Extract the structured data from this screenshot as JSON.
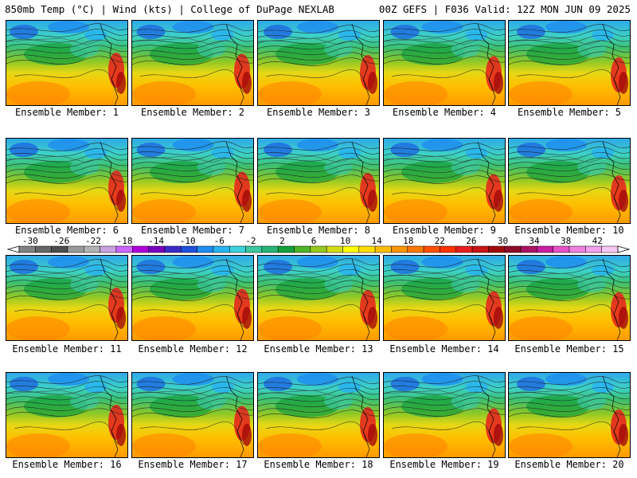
{
  "header": {
    "left": "850mb Temp (°C) | Wind (kts) | College of DuPage NEXLAB",
    "right": "00Z GEFS | F036 Valid: 12Z MON JUN 09 2025"
  },
  "colorbar": {
    "labels": [
      "-30",
      "-26",
      "-22",
      "-18",
      "-14",
      "-10",
      "-6",
      "-2",
      "2",
      "6",
      "10",
      "14",
      "18",
      "22",
      "26",
      "30",
      "34",
      "38",
      "42"
    ],
    "colors": [
      "#808080",
      "#666666",
      "#4d4d4d",
      "#999999",
      "#b3b3b3",
      "#c8a2e0",
      "#cc66ff",
      "#b000d8",
      "#7a00c0",
      "#3c2ac8",
      "#1e50dc",
      "#1e8cf0",
      "#28b4f0",
      "#3cd2dc",
      "#3cc8a0",
      "#28b478",
      "#14a03c",
      "#50b428",
      "#96c81e",
      "#d2dc14",
      "#ffff00",
      "#ffdc00",
      "#ffbe00",
      "#ff9600",
      "#ff7800",
      "#ff5000",
      "#ff3200",
      "#e61e1e",
      "#c81414",
      "#a00a0a",
      "#8c0a28",
      "#aa1464",
      "#c81ea0",
      "#e650c8",
      "#f080e0",
      "#f4a0ec",
      "#f8c8f4"
    ]
  },
  "members": [
    {
      "label": "Ensemble Member: 1"
    },
    {
      "label": "Ensemble Member: 2"
    },
    {
      "label": "Ensemble Member: 3"
    },
    {
      "label": "Ensemble Member: 4"
    },
    {
      "label": "Ensemble Member: 5"
    },
    {
      "label": "Ensemble Member: 6"
    },
    {
      "label": "Ensemble Member: 7"
    },
    {
      "label": "Ensemble Member: 8"
    },
    {
      "label": "Ensemble Member: 9"
    },
    {
      "label": "Ensemble Member: 10"
    },
    {
      "label": "Ensemble Member: 11"
    },
    {
      "label": "Ensemble Member: 12"
    },
    {
      "label": "Ensemble Member: 13"
    },
    {
      "label": "Ensemble Member: 14"
    },
    {
      "label": "Ensemble Member: 15"
    },
    {
      "label": "Ensemble Member: 16"
    },
    {
      "label": "Ensemble Member: 17"
    },
    {
      "label": "Ensemble Member: 18"
    },
    {
      "label": "Ensemble Member: 19"
    },
    {
      "label": "Ensemble Member: 20"
    }
  ]
}
